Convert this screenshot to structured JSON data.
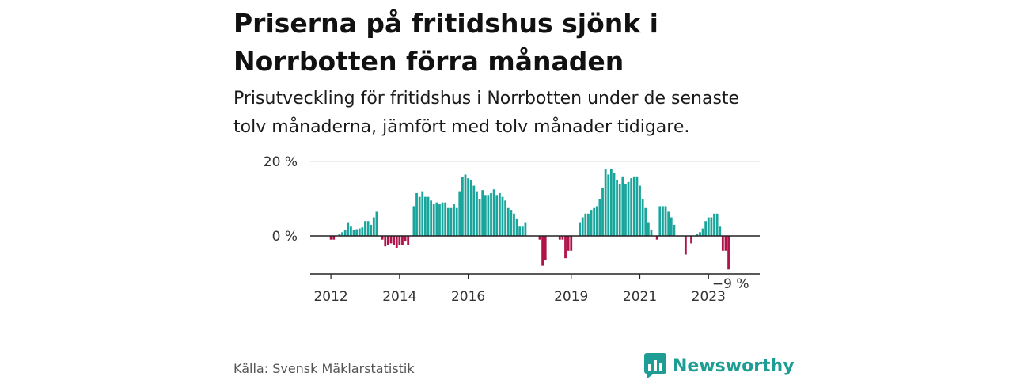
{
  "header": {
    "title_line1": "Priserna på fritidshus sjönk i",
    "title_line2": "Norrbotten förra månaden",
    "subtitle_line1": "Prisutveckling för fritidshus i Norrbotten under de senaste",
    "subtitle_line2": "tolv månaderna, jämfört med tolv månader tidigare."
  },
  "footer": {
    "source": "Källa: Svensk Mäklarstatistik",
    "brand": "Newsworthy"
  },
  "colors": {
    "positive": "#1aa59c",
    "negative": "#b0124a",
    "gridline": "#d9d9d9",
    "zero_line": "#222222",
    "brand": "#1d9d93"
  },
  "chart_data": {
    "type": "bar",
    "title": "Priserna på fritidshus sjönk i Norrbotten förra månaden",
    "subtitle": "Prisutveckling för fritidshus i Norrbotten under de senaste tolv månaderna, jämfört med tolv månader tidigare.",
    "ylabel": "",
    "xlabel": "",
    "ylim": [
      -10,
      20
    ],
    "y_ticks": [
      {
        "value": 20,
        "label": "20 %"
      },
      {
        "value": 0,
        "label": "0 %"
      }
    ],
    "x_ticks": [
      {
        "index": 6,
        "label": "2012"
      },
      {
        "index": 30,
        "label": "2014"
      },
      {
        "index": 54,
        "label": "2016"
      },
      {
        "index": 90,
        "label": "2019"
      },
      {
        "index": 114,
        "label": "2021"
      },
      {
        "index": 138,
        "label": "2023"
      }
    ],
    "annotation": {
      "label": "−9 %"
    },
    "start": "2011-07",
    "series": [
      {
        "name": "Prisutveckling (%)",
        "values": [
          0,
          0,
          0,
          0,
          0,
          0,
          -1,
          -1,
          0,
          0.5,
          1,
          1.5,
          3.5,
          2.5,
          1.5,
          1.8,
          2,
          2.3,
          4,
          4,
          3,
          5,
          6.5,
          0,
          -1,
          -2.8,
          -2.5,
          -2,
          -2.5,
          -3.2,
          -2.5,
          -2.5,
          -1.5,
          -2.5,
          0,
          8,
          11.5,
          10.5,
          12,
          10.5,
          10.5,
          9.5,
          8.5,
          9,
          8.5,
          9,
          9,
          7.5,
          7.5,
          8.5,
          7.5,
          12,
          15.8,
          16.5,
          15.5,
          15,
          13.5,
          12,
          10,
          12.3,
          11,
          11,
          11.5,
          12.5,
          11,
          11.5,
          10.5,
          9.5,
          7.5,
          7,
          6,
          4.5,
          2.5,
          2.5,
          3.5,
          0,
          0,
          0,
          0,
          -1,
          -8,
          -6.5,
          0,
          0,
          0,
          0,
          -1,
          -1,
          -6,
          -4,
          -4,
          0,
          0,
          3.5,
          5,
          6,
          6,
          7,
          7.5,
          8,
          10,
          13,
          18,
          16.5,
          18,
          17,
          15,
          14,
          16,
          14,
          14.5,
          15.5,
          16,
          16,
          13.5,
          10,
          7.5,
          3.5,
          1.5,
          0,
          -1,
          8,
          8,
          8,
          6.5,
          5,
          3,
          0,
          0,
          0,
          -5,
          0,
          -2,
          0,
          0.5,
          1,
          2,
          4,
          5,
          5,
          6,
          6,
          2.5,
          -4,
          -4,
          -9
        ]
      }
    ]
  }
}
